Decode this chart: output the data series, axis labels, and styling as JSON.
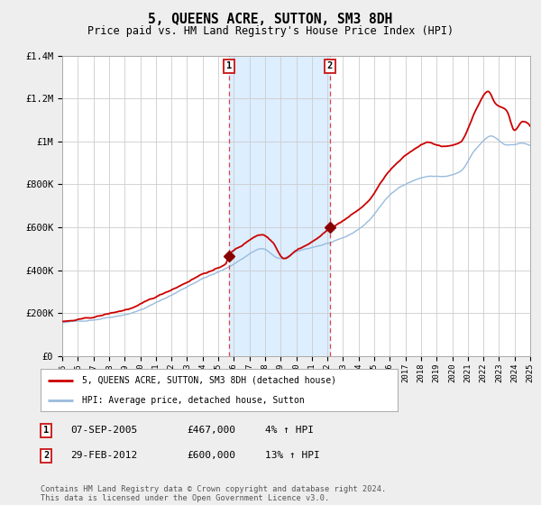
{
  "title": "5, QUEENS ACRE, SUTTON, SM3 8DH",
  "subtitle": "Price paid vs. HM Land Registry's House Price Index (HPI)",
  "x_start_year": 1995,
  "x_end_year": 2025,
  "y_min": 0,
  "y_max": 1400000,
  "y_ticks": [
    0,
    200000,
    400000,
    600000,
    800000,
    1000000,
    1200000,
    1400000
  ],
  "y_tick_labels": [
    "£0",
    "£200K",
    "£400K",
    "£600K",
    "£800K",
    "£1M",
    "£1.2M",
    "£1.4M"
  ],
  "background_color": "#eeeeee",
  "plot_background": "#ffffff",
  "grid_color": "#cccccc",
  "sale1_date": 2005.69,
  "sale1_price": 467000,
  "sale1_label": "1",
  "sale2_date": 2012.16,
  "sale2_price": 600000,
  "sale2_label": "2",
  "shade_color": "#ddeeff",
  "dashed_line_color": "#dd4444",
  "hpi_line_color": "#99bbdd",
  "price_line_color": "#cc0000",
  "marker_color": "#880000",
  "legend_label1": "5, QUEENS ACRE, SUTTON, SM3 8DH (detached house)",
  "legend_label2": "HPI: Average price, detached house, Sutton",
  "table_row1": [
    "1",
    "07-SEP-2005",
    "£467,000",
    "4% ↑ HPI"
  ],
  "table_row2": [
    "2",
    "29-FEB-2012",
    "£600,000",
    "13% ↑ HPI"
  ],
  "footer": "Contains HM Land Registry data © Crown copyright and database right 2024.\nThis data is licensed under the Open Government Licence v3.0."
}
